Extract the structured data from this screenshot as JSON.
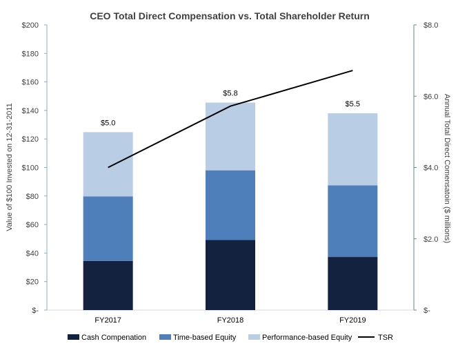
{
  "chart_data": {
    "type": "bar",
    "title": "CEO Total Direct Compensation vs. Total Shareholder Return",
    "categories": [
      "FY2017",
      "FY2018",
      "FY2019"
    ],
    "ylabel": "Value of $100 Invested on 12-31-2011",
    "y2label": "Annual Total Direct Comensatoin ($ millions)",
    "ylim": [
      0,
      200
    ],
    "y2lim": [
      0,
      8
    ],
    "yticks": [
      "$-",
      "$20",
      "$40",
      "$60",
      "$80",
      "$100",
      "$120",
      "$140",
      "$160",
      "$180",
      "$200"
    ],
    "y2ticks": [
      "$-",
      "$2.0",
      "$4.0",
      "$6.0",
      "$8.0"
    ],
    "grid": false,
    "legend_position": "bottom",
    "series": [
      {
        "name": "Cash Compenation",
        "axis": "right",
        "color": "#13233f",
        "values": [
          1.38,
          1.97,
          1.49
        ]
      },
      {
        "name": "Time-based Equity",
        "axis": "right",
        "color": "#4e7fbb",
        "values": [
          1.81,
          1.95,
          2.01
        ]
      },
      {
        "name": "Performance-based Equity",
        "axis": "right",
        "color": "#b9cde4",
        "values": [
          1.8,
          1.9,
          2.02
        ]
      },
      {
        "name": "TSR",
        "axis": "left",
        "type": "line",
        "color": "#000000",
        "values": [
          100,
          143,
          168
        ]
      }
    ],
    "data_labels": [
      "$5.0",
      "$5.8",
      "$5.5"
    ]
  }
}
